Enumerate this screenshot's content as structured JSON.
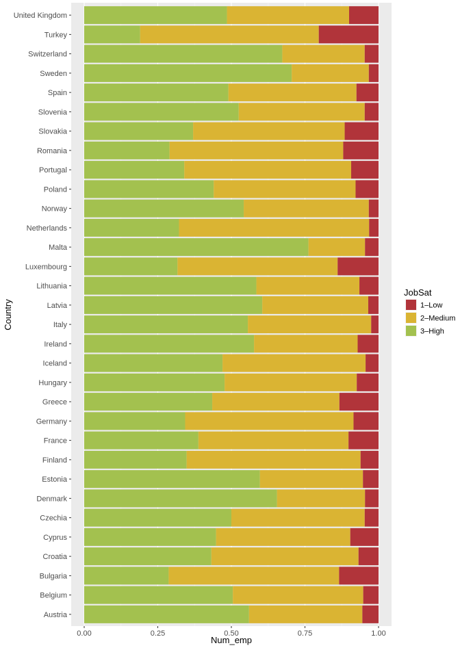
{
  "chart_data": {
    "type": "bar",
    "orientation": "horizontal",
    "stacked": true,
    "xlabel": "Num_emp",
    "ylabel": "Country",
    "xlim": [
      0,
      1
    ],
    "xticks": [
      "0.00",
      "0.25",
      "0.50",
      "0.75",
      "1.00"
    ],
    "grid": true,
    "legend": {
      "title": "JobSat",
      "placement": "right",
      "entries": [
        "1–Low",
        "2–Medium",
        "3–High"
      ]
    },
    "categories": [
      "United Kingdom",
      "Turkey",
      "Switzerland",
      "Sweden",
      "Spain",
      "Slovenia",
      "Slovakia",
      "Romania",
      "Portugal",
      "Poland",
      "Norway",
      "Netherlands",
      "Malta",
      "Luxembourg",
      "Lithuania",
      "Latvia",
      "Italy",
      "Ireland",
      "Iceland",
      "Hungary",
      "Greece",
      "Germany",
      "France",
      "Finland",
      "Estonia",
      "Denmark",
      "Czechia",
      "Cyprus",
      "Croatia",
      "Bulgaria",
      "Belgium",
      "Austria"
    ],
    "series": [
      {
        "name": "3–High",
        "color": "#a3c14f",
        "values": [
          0.485,
          0.19,
          0.673,
          0.705,
          0.49,
          0.525,
          0.37,
          0.29,
          0.34,
          0.44,
          0.542,
          0.322,
          0.762,
          0.317,
          0.585,
          0.605,
          0.556,
          0.577,
          0.47,
          0.477,
          0.435,
          0.343,
          0.388,
          0.348,
          0.597,
          0.655,
          0.5,
          0.448,
          0.432,
          0.287,
          0.505,
          0.56
        ]
      },
      {
        "name": "2–Medium",
        "color": "#dab433",
        "values": [
          0.415,
          0.607,
          0.28,
          0.262,
          0.435,
          0.428,
          0.515,
          0.59,
          0.567,
          0.482,
          0.425,
          0.646,
          0.192,
          0.544,
          0.35,
          0.36,
          0.419,
          0.352,
          0.486,
          0.449,
          0.432,
          0.572,
          0.51,
          0.591,
          0.35,
          0.299,
          0.453,
          0.456,
          0.5,
          0.579,
          0.443,
          0.385
        ]
      },
      {
        "name": "1–Low",
        "color": "#b1343a",
        "values": [
          0.1,
          0.203,
          0.047,
          0.033,
          0.075,
          0.047,
          0.115,
          0.12,
          0.093,
          0.078,
          0.033,
          0.032,
          0.046,
          0.139,
          0.065,
          0.035,
          0.025,
          0.071,
          0.044,
          0.074,
          0.133,
          0.085,
          0.102,
          0.061,
          0.053,
          0.046,
          0.047,
          0.096,
          0.068,
          0.134,
          0.052,
          0.055
        ]
      }
    ]
  }
}
